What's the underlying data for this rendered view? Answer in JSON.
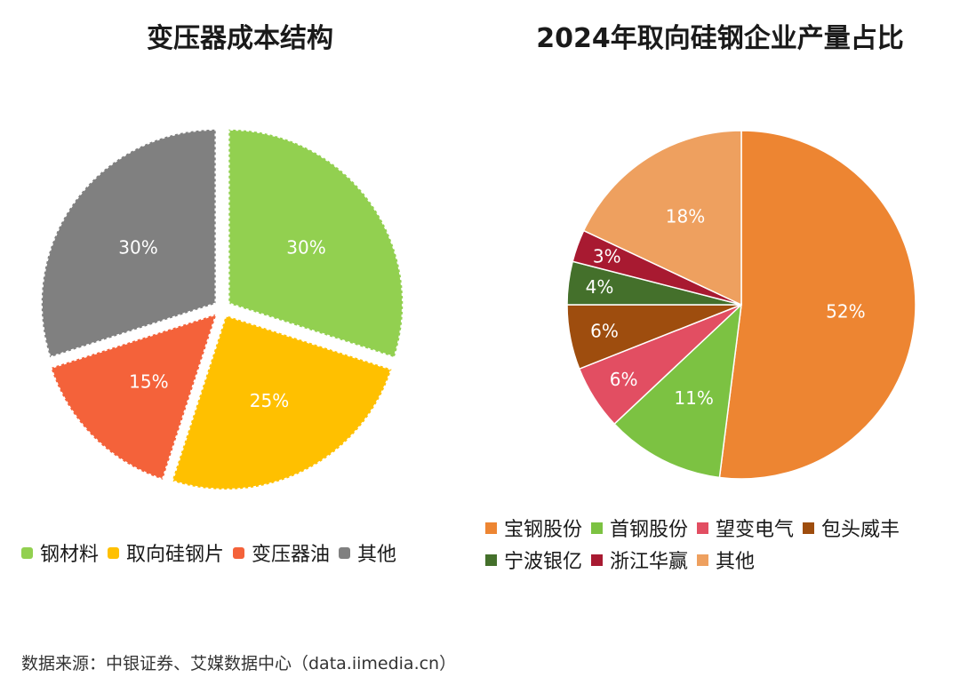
{
  "chart_data": [
    {
      "type": "pie",
      "title": "变压器成本结构",
      "categories": [
        "钢材料",
        "取向硅钢片",
        "变压器油",
        "其他"
      ],
      "values": [
        30,
        25,
        15,
        30
      ],
      "labels": [
        "30%",
        "25%",
        "15%",
        "30%"
      ],
      "colors": [
        "#92d050",
        "#ffc000",
        "#f4623a",
        "#808080"
      ],
      "legend_position": "bottom"
    },
    {
      "type": "pie",
      "title": "2024年取向硅钢企业产量占比",
      "categories": [
        "宝钢股份",
        "首钢股份",
        "望变电气",
        "包头威丰",
        "宁波银亿",
        "浙江华赢",
        "其他"
      ],
      "values": [
        52,
        11,
        6,
        6,
        4,
        3,
        18
      ],
      "labels": [
        "52%",
        "11%",
        "6%",
        "6%",
        "4%",
        "3%",
        "18%"
      ],
      "colors": [
        "#ed8532",
        "#7cc242",
        "#e24e62",
        "#9e4d0e",
        "#44702b",
        "#a81a31",
        "#eea05f"
      ],
      "legend_position": "bottom"
    }
  ],
  "source": "数据来源：中银证券、艾媒数据中心（data.iimedia.cn）"
}
